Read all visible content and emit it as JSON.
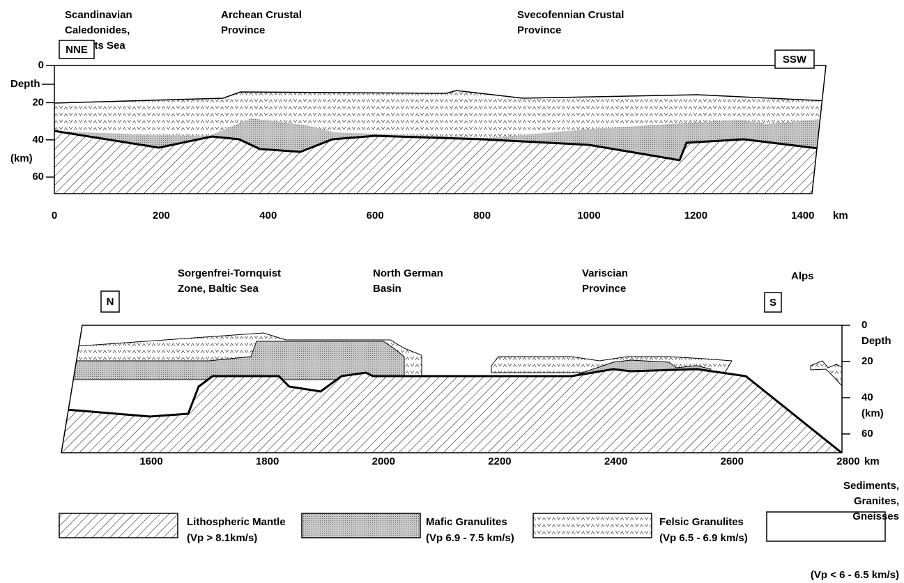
{
  "top_section": {
    "regions": [
      [
        "Scandinavian",
        "Caledonides,",
        "Barents Sea"
      ],
      [
        "Archean Crustal",
        "Province"
      ],
      [
        "Svecofennian Crustal",
        "Province"
      ]
    ],
    "left_end": "NNE",
    "right_end": "SSW",
    "depth_label": "Depth",
    "depth_unit": "(km)",
    "depth_ticks": [
      0,
      20,
      40,
      60
    ],
    "distance_ticks": [
      0,
      200,
      400,
      600,
      800,
      1000,
      1200,
      1400
    ],
    "distance_unit": "km"
  },
  "bottom_section": {
    "regions": [
      [
        "Sorgenfrei-Tornquist",
        "Zone, Baltic Sea"
      ],
      [
        "North German",
        "Basin"
      ],
      [
        "Variscian",
        "Province"
      ],
      [
        "Alps"
      ]
    ],
    "left_end": "N",
    "right_end": "S",
    "depth_label": "Depth",
    "depth_unit": "(km)",
    "depth_ticks": [
      0,
      20,
      40,
      60
    ],
    "distance_ticks": [
      1600,
      1800,
      2000,
      2200,
      2400,
      2600,
      2800
    ],
    "distance_unit": "km"
  },
  "legend": [
    [
      "Lithospheric Mantle",
      "(Vp > 8.1km/s)"
    ],
    [
      "Mafic Granulites",
      "(Vp 6.9 - 7.5 km/s)"
    ],
    [
      "Felsic Granulites",
      "(Vp 6.5 - 6.9 km/s)"
    ],
    [
      "Sediments,",
      "Granites,",
      "Gneisses",
      "(Vp < 6 - 6.5 km/s)"
    ]
  ]
}
